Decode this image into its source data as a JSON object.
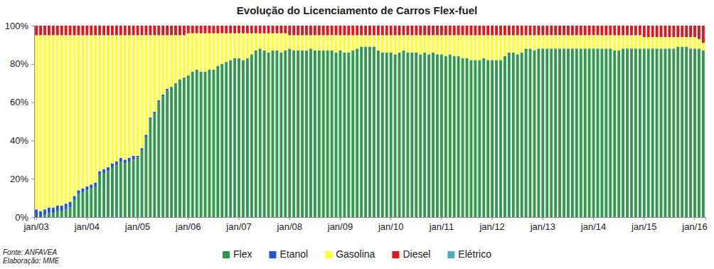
{
  "chart_data": {
    "type": "bar",
    "title": "Evolução do Licenciamento  de Carros Flex-fuel",
    "annotations": [
      "Fonte: ANFAVEA",
      "Elaboração: MME"
    ],
    "stacked": true,
    "grid": false,
    "legend": "bottom",
    "ylim": [
      0,
      100
    ],
    "yticks": [
      {
        "value": 0,
        "label": "0%"
      },
      {
        "value": 20,
        "label": "20%"
      },
      {
        "value": 40,
        "label": "40%"
      },
      {
        "value": 60,
        "label": "60%"
      },
      {
        "value": 80,
        "label": "80%"
      },
      {
        "value": 100,
        "label": "100%"
      }
    ],
    "categories": [
      "jan/03",
      null,
      null,
      null,
      null,
      null,
      null,
      null,
      null,
      null,
      null,
      null,
      "jan/04",
      null,
      null,
      null,
      null,
      null,
      null,
      null,
      null,
      null,
      null,
      null,
      "jan/05",
      null,
      null,
      null,
      null,
      null,
      null,
      null,
      null,
      null,
      null,
      null,
      "jan/06",
      null,
      null,
      null,
      null,
      null,
      null,
      null,
      null,
      null,
      null,
      null,
      "jan/07",
      null,
      null,
      null,
      null,
      null,
      null,
      null,
      null,
      null,
      null,
      null,
      "jan/08",
      null,
      null,
      null,
      null,
      null,
      null,
      null,
      null,
      null,
      null,
      null,
      "jan/09",
      null,
      null,
      null,
      null,
      null,
      null,
      null,
      null,
      null,
      null,
      null,
      "jan/10",
      null,
      null,
      null,
      null,
      null,
      null,
      null,
      null,
      null,
      null,
      null,
      "jan/11",
      null,
      null,
      null,
      null,
      null,
      null,
      null,
      null,
      null,
      null,
      null,
      "jan/12",
      null,
      null,
      null,
      null,
      null,
      null,
      null,
      null,
      null,
      null,
      null,
      "jan/13",
      null,
      null,
      null,
      null,
      null,
      null,
      null,
      null,
      null,
      null,
      null,
      "jan/14",
      null,
      null,
      null,
      null,
      null,
      null,
      null,
      null,
      null,
      null,
      null,
      "jan/15",
      null,
      null,
      null,
      null,
      null,
      null,
      null,
      null,
      null,
      null,
      null,
      "jan/16",
      null,
      null
    ],
    "series": [
      {
        "name": "Flex",
        "color": "#2e9a4a",
        "values": [
          0,
          0,
          1,
          2,
          2,
          3,
          3,
          4,
          5,
          9,
          12,
          13,
          14,
          15,
          16,
          22,
          23,
          24,
          26,
          27,
          29,
          28,
          29,
          30,
          31,
          35,
          42,
          51,
          54,
          60,
          63,
          66,
          68,
          70,
          72,
          73,
          74,
          76,
          77,
          76,
          76,
          77,
          77,
          79,
          80,
          81,
          82,
          83,
          83,
          82,
          83,
          85,
          87,
          88,
          87,
          86,
          87,
          87,
          86,
          87,
          88,
          87,
          87,
          87,
          87,
          88,
          87,
          87,
          87,
          87,
          87,
          86,
          87,
          86,
          86,
          87,
          88,
          89,
          89,
          89,
          89,
          87,
          86,
          86,
          86,
          85,
          86,
          87,
          86,
          86,
          86,
          85,
          86,
          85,
          86,
          85,
          85,
          84,
          85,
          84,
          84,
          83,
          83,
          82,
          82,
          82,
          83,
          82,
          82,
          82,
          82,
          84,
          86,
          86,
          85,
          86,
          88,
          88,
          87,
          88,
          88,
          88,
          88,
          88,
          88,
          88,
          88,
          88,
          88,
          88,
          88,
          88,
          88,
          88,
          88,
          88,
          88,
          87,
          87,
          88,
          88,
          88,
          88,
          88,
          88,
          88,
          88,
          88,
          88,
          88,
          88,
          88,
          89,
          89,
          89,
          88,
          88,
          88,
          87
        ]
      },
      {
        "name": "Etanol",
        "color": "#2456d0",
        "values": [
          4,
          3,
          3,
          3,
          3,
          3,
          3,
          3,
          3,
          2,
          2,
          2,
          2,
          2,
          2,
          2,
          2,
          2,
          2,
          2,
          2,
          2,
          2,
          2,
          1,
          1,
          1,
          1,
          1,
          1,
          1,
          1,
          0,
          0,
          0,
          0,
          0,
          0,
          0,
          0,
          0,
          0,
          0,
          0,
          0,
          0,
          0,
          0,
          0,
          0,
          0,
          0,
          0,
          0,
          0,
          0,
          0,
          0,
          0,
          0,
          0,
          0,
          0,
          0,
          0,
          0,
          0,
          0,
          0,
          0,
          0,
          0,
          0,
          0,
          0,
          0,
          0,
          0,
          0,
          0,
          0,
          0,
          0,
          0,
          0,
          0,
          0,
          0,
          0,
          0,
          0,
          0,
          0,
          0,
          0,
          0,
          0,
          0,
          0,
          0,
          0,
          0,
          0,
          0,
          0,
          0,
          0,
          0,
          0,
          0,
          0,
          0,
          0,
          0,
          0,
          0,
          0,
          0,
          0,
          0,
          0,
          0,
          0,
          0,
          0,
          0,
          0,
          0,
          0,
          0,
          0,
          0,
          0,
          0,
          0,
          0,
          0,
          0,
          0,
          0,
          0,
          0,
          0,
          0,
          0,
          0,
          0,
          0,
          0,
          0,
          0,
          0,
          0,
          0,
          0,
          0,
          0,
          0,
          0
        ]
      },
      {
        "name": "Gasolina",
        "color": "#ffff33",
        "values": [
          91,
          92,
          91,
          90,
          90,
          89,
          89,
          88,
          87,
          84,
          81,
          80,
          79,
          78,
          77,
          71,
          70,
          69,
          67,
          66,
          64,
          65,
          64,
          63,
          63,
          59,
          52,
          43,
          40,
          34,
          31,
          28,
          27,
          25,
          23,
          22,
          22,
          20,
          19,
          20,
          20,
          19,
          19,
          17,
          16,
          15,
          14,
          13,
          13,
          14,
          13,
          11,
          9,
          8,
          9,
          10,
          9,
          9,
          10,
          9,
          7,
          8,
          8,
          8,
          8,
          7,
          8,
          8,
          8,
          8,
          8,
          9,
          8,
          9,
          9,
          8,
          7,
          6,
          6,
          6,
          6,
          8,
          9,
          9,
          9,
          10,
          9,
          8,
          9,
          9,
          9,
          10,
          9,
          10,
          9,
          10,
          10,
          11,
          10,
          11,
          11,
          12,
          12,
          13,
          13,
          13,
          12,
          13,
          13,
          13,
          13,
          11,
          9,
          9,
          10,
          9,
          7,
          7,
          8,
          7,
          7,
          7,
          7,
          7,
          7,
          7,
          7,
          7,
          7,
          7,
          7,
          7,
          7,
          7,
          7,
          7,
          7,
          8,
          8,
          7,
          7,
          7,
          7,
          7,
          6,
          6,
          6,
          6,
          6,
          6,
          6,
          6,
          5,
          5,
          5,
          6,
          6,
          5,
          4
        ]
      },
      {
        "name": "Diesel",
        "color": "#e3161d",
        "values": [
          5,
          5,
          5,
          5,
          5,
          5,
          5,
          5,
          5,
          5,
          5,
          5,
          5,
          5,
          5,
          5,
          5,
          5,
          5,
          5,
          5,
          5,
          5,
          5,
          5,
          5,
          5,
          5,
          5,
          5,
          5,
          5,
          5,
          5,
          5,
          5,
          4,
          4,
          4,
          4,
          4,
          4,
          4,
          4,
          4,
          4,
          4,
          4,
          4,
          4,
          4,
          4,
          4,
          4,
          4,
          4,
          4,
          4,
          4,
          4,
          5,
          5,
          5,
          5,
          5,
          5,
          5,
          5,
          5,
          5,
          5,
          5,
          5,
          5,
          5,
          5,
          5,
          5,
          5,
          5,
          5,
          5,
          5,
          5,
          5,
          5,
          5,
          5,
          5,
          5,
          5,
          5,
          5,
          5,
          5,
          5,
          5,
          5,
          5,
          5,
          5,
          5,
          5,
          5,
          5,
          5,
          5,
          5,
          5,
          5,
          5,
          5,
          5,
          5,
          5,
          5,
          5,
          5,
          5,
          5,
          5,
          5,
          5,
          5,
          5,
          5,
          5,
          5,
          5,
          5,
          5,
          5,
          5,
          5,
          5,
          5,
          5,
          5,
          5,
          5,
          5,
          5,
          5,
          5,
          6,
          6,
          6,
          6,
          6,
          6,
          6,
          6,
          6,
          6,
          6,
          6,
          6,
          7,
          9
        ]
      },
      {
        "name": "Elétrico",
        "color": "#4bacc6",
        "values": [
          0,
          0,
          0,
          0,
          0,
          0,
          0,
          0,
          0,
          0,
          0,
          0,
          0,
          0,
          0,
          0,
          0,
          0,
          0,
          0,
          0,
          0,
          0,
          0,
          0,
          0,
          0,
          0,
          0,
          0,
          0,
          0,
          0,
          0,
          0,
          0,
          0,
          0,
          0,
          0,
          0,
          0,
          0,
          0,
          0,
          0,
          0,
          0,
          0,
          0,
          0,
          0,
          0,
          0,
          0,
          0,
          0,
          0,
          0,
          0,
          0,
          0,
          0,
          0,
          0,
          0,
          0,
          0,
          0,
          0,
          0,
          0,
          0,
          0,
          0,
          0,
          0,
          0,
          0,
          0,
          0,
          0,
          0,
          0,
          0,
          0,
          0,
          0,
          0,
          0,
          0,
          0,
          0,
          0,
          0,
          0,
          0,
          0,
          0,
          0,
          0,
          0,
          0,
          0,
          0,
          0,
          0,
          0,
          0,
          0,
          0,
          0,
          0,
          0,
          0,
          0,
          0,
          0,
          0,
          0,
          0,
          0,
          0,
          0,
          0,
          0,
          0,
          0,
          0,
          0,
          0,
          0,
          0,
          0,
          0,
          0,
          0,
          0,
          0,
          0,
          0,
          0,
          0,
          0,
          0,
          0,
          0,
          0,
          0,
          0,
          0,
          0,
          0,
          0,
          0,
          0,
          0,
          0,
          0
        ]
      }
    ]
  }
}
